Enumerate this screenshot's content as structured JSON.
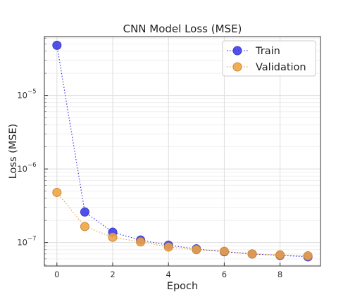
{
  "chart_data": {
    "type": "line",
    "title": "CNN Model Loss (MSE)",
    "xlabel": "Epoch",
    "ylabel": "Loss (MSE)",
    "yscale": "log",
    "xlim": [
      -0.45,
      9.45
    ],
    "ylim": [
      4.8e-08,
      6.3e-05
    ],
    "x": [
      0,
      1,
      2,
      3,
      4,
      5,
      6,
      7,
      8,
      9
    ],
    "x_ticks": [
      0,
      2,
      4,
      6,
      8
    ],
    "y_ticks": [
      {
        "value": 1e-07,
        "base": "10",
        "exp": "−7"
      },
      {
        "value": 1e-06,
        "base": "10",
        "exp": "−6"
      },
      {
        "value": 1e-05,
        "base": "10",
        "exp": "−5"
      }
    ],
    "grid": true,
    "legend_position": "top-right",
    "series": [
      {
        "name": "Train",
        "color": "#3a3ae6",
        "edge_color": "#3a3ad0",
        "values": [
          4.8e-05,
          2.6e-07,
          1.38e-07,
          1.08e-07,
          9.2e-08,
          8.2e-08,
          7.5e-08,
          7e-08,
          6.7e-08,
          6.4e-08
        ]
      },
      {
        "name": "Validation",
        "color": "#f0a340",
        "edge_color": "#c98a3a",
        "values": [
          4.8e-07,
          1.65e-07,
          1.18e-07,
          1.02e-07,
          8.7e-08,
          8e-08,
          7.6e-08,
          7e-08,
          6.8e-08,
          6.6e-08
        ]
      }
    ]
  }
}
